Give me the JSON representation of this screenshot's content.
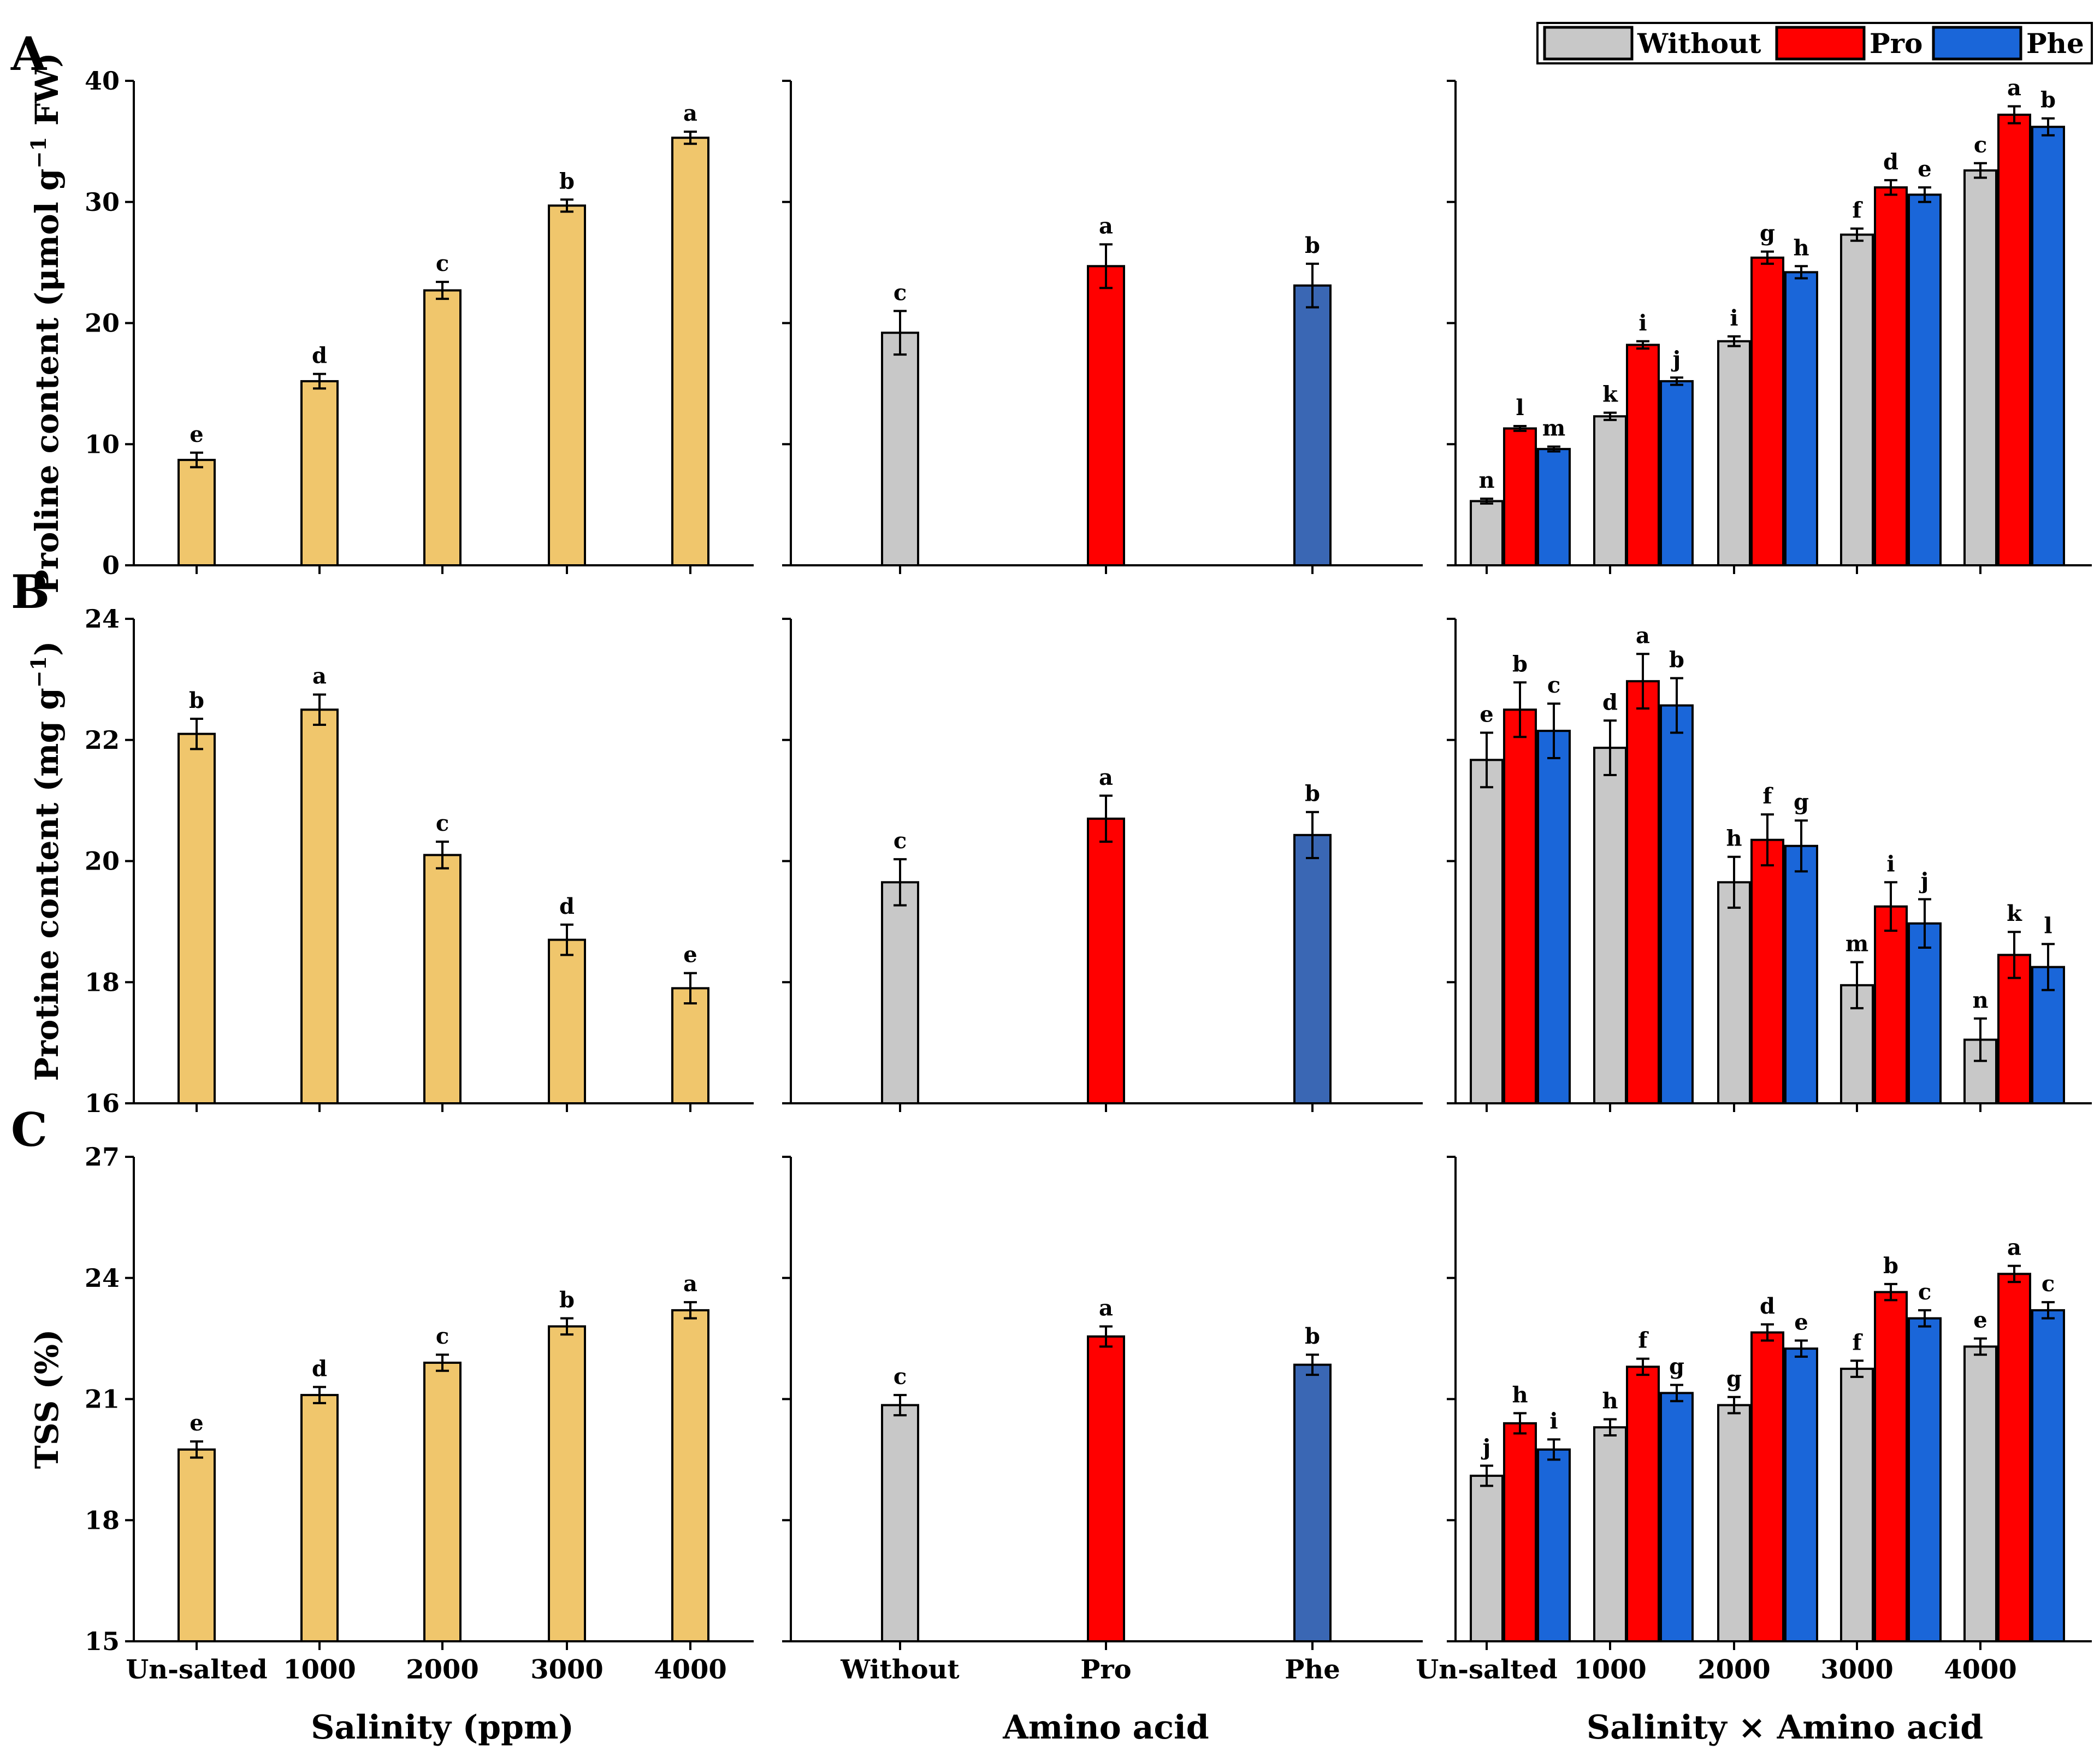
{
  "legend": {
    "items": [
      {
        "name": "Without",
        "color": "#c8c8c8"
      },
      {
        "name": "Pro",
        "color": "#ff0000"
      },
      {
        "name": "Phe",
        "color": "#1a66d9"
      }
    ]
  },
  "panel_letters": [
    "A",
    "B",
    "C"
  ],
  "col_titles": [
    "Salinity (ppm)",
    "Amino acid",
    "Salinity × Amino acid"
  ],
  "colors": {
    "salinity": "#f0c66c",
    "without": "#c8c8c8",
    "pro": "#ff0000",
    "phe_main": "#3a67b4",
    "phe_interaction": "#1a66d9"
  },
  "chart_data": [
    {
      "type": "bar",
      "panel": "A",
      "title": "",
      "ylabel_main": "Proline content (μmol g",
      "ylabel_sup": "−1",
      "ylabel_tail": " FW)",
      "ylim": [
        0,
        40
      ],
      "yticks": [
        0,
        10,
        20,
        30,
        40
      ],
      "salinity": {
        "categories": [
          "Un-salted",
          "1000",
          "2000",
          "3000",
          "4000"
        ],
        "values": [
          8.7,
          15.2,
          22.7,
          29.7,
          35.3
        ],
        "errors": [
          0.6,
          0.6,
          0.7,
          0.5,
          0.5
        ],
        "letters": [
          "e",
          "d",
          "c",
          "b",
          "a"
        ]
      },
      "amino": {
        "categories": [
          "Without",
          "Pro",
          "Phe"
        ],
        "values": [
          19.2,
          24.7,
          23.1
        ],
        "errors": [
          1.8,
          1.8,
          1.8
        ],
        "letters": [
          "c",
          "a",
          "b"
        ]
      },
      "interaction": {
        "categories": [
          "Un-salted",
          "1000",
          "2000",
          "3000",
          "4000"
        ],
        "series": [
          {
            "name": "Without",
            "values": [
              5.3,
              12.3,
              18.5,
              27.3,
              32.6
            ],
            "errors": [
              0.2,
              0.3,
              0.4,
              0.5,
              0.6
            ],
            "letters": [
              "n",
              "k",
              "i",
              "f",
              "c"
            ]
          },
          {
            "name": "Pro",
            "values": [
              11.3,
              18.2,
              25.4,
              31.2,
              37.2
            ],
            "errors": [
              0.2,
              0.3,
              0.5,
              0.6,
              0.7
            ],
            "letters": [
              "l",
              "i",
              "g",
              "d",
              "a"
            ]
          },
          {
            "name": "Phe",
            "values": [
              9.6,
              15.2,
              24.2,
              30.6,
              36.2
            ],
            "errors": [
              0.2,
              0.3,
              0.5,
              0.6,
              0.7
            ],
            "letters": [
              "m",
              "j",
              "h",
              "e",
              "b"
            ]
          }
        ]
      }
    },
    {
      "type": "bar",
      "panel": "B",
      "title": "",
      "ylabel_main": "Protine content (mg g",
      "ylabel_sup": "−1",
      "ylabel_tail": ")",
      "ylim": [
        16,
        24
      ],
      "yticks": [
        16,
        18,
        20,
        22,
        24
      ],
      "salinity": {
        "categories": [
          "Un-salted",
          "1000",
          "2000",
          "3000",
          "4000"
        ],
        "values": [
          22.1,
          22.5,
          20.1,
          18.7,
          17.9
        ],
        "errors": [
          0.25,
          0.25,
          0.22,
          0.25,
          0.25
        ],
        "letters": [
          "b",
          "a",
          "c",
          "d",
          "e"
        ]
      },
      "amino": {
        "categories": [
          "Without",
          "Pro",
          "Phe"
        ],
        "values": [
          19.65,
          20.7,
          20.43
        ],
        "errors": [
          0.38,
          0.38,
          0.38
        ],
        "letters": [
          "c",
          "a",
          "b"
        ]
      },
      "interaction": {
        "categories": [
          "Un-salted",
          "1000",
          "2000",
          "3000",
          "4000"
        ],
        "series": [
          {
            "name": "Without",
            "values": [
              21.67,
              21.87,
              19.65,
              17.95,
              17.05
            ],
            "errors": [
              0.45,
              0.45,
              0.42,
              0.38,
              0.35
            ],
            "letters": [
              "e",
              "d",
              "h",
              "m",
              "n"
            ]
          },
          {
            "name": "Pro",
            "values": [
              22.5,
              22.97,
              20.35,
              19.25,
              18.45
            ],
            "errors": [
              0.45,
              0.45,
              0.42,
              0.4,
              0.38
            ],
            "letters": [
              "b",
              "a",
              "f",
              "i",
              "k"
            ]
          },
          {
            "name": "Phe",
            "values": [
              22.15,
              22.57,
              20.25,
              18.97,
              18.25
            ],
            "errors": [
              0.45,
              0.45,
              0.42,
              0.4,
              0.38
            ],
            "letters": [
              "c",
              "b",
              "g",
              "j",
              "l"
            ]
          }
        ]
      }
    },
    {
      "type": "bar",
      "panel": "C",
      "title": "",
      "ylabel_main": "TSS (%)",
      "ylabel_sup": "",
      "ylabel_tail": "",
      "ylim": [
        15,
        27
      ],
      "yticks": [
        15,
        18,
        21,
        24,
        27
      ],
      "salinity": {
        "categories": [
          "Un-salted",
          "1000",
          "2000",
          "3000",
          "4000"
        ],
        "values": [
          19.75,
          21.1,
          21.9,
          22.8,
          23.2
        ],
        "errors": [
          0.2,
          0.2,
          0.2,
          0.2,
          0.2
        ],
        "letters": [
          "e",
          "d",
          "c",
          "b",
          "a"
        ]
      },
      "amino": {
        "categories": [
          "Without",
          "Pro",
          "Phe"
        ],
        "values": [
          20.85,
          22.55,
          21.85
        ],
        "errors": [
          0.25,
          0.25,
          0.25
        ],
        "letters": [
          "c",
          "a",
          "b"
        ]
      },
      "interaction": {
        "categories": [
          "Un-salted",
          "1000",
          "2000",
          "3000",
          "4000"
        ],
        "series": [
          {
            "name": "Without",
            "values": [
              19.1,
              20.3,
              20.85,
              21.75,
              22.3
            ],
            "errors": [
              0.25,
              0.2,
              0.2,
              0.2,
              0.2
            ],
            "letters": [
              "j",
              "h",
              "g",
              "f",
              "e"
            ]
          },
          {
            "name": "Pro",
            "values": [
              20.4,
              21.8,
              22.65,
              23.65,
              24.1
            ],
            "errors": [
              0.25,
              0.2,
              0.2,
              0.2,
              0.2
            ],
            "letters": [
              "h",
              "f",
              "d",
              "b",
              "a"
            ]
          },
          {
            "name": "Phe",
            "values": [
              19.75,
              21.15,
              22.25,
              23.0,
              23.2
            ],
            "errors": [
              0.25,
              0.2,
              0.2,
              0.2,
              0.2
            ],
            "letters": [
              "i",
              "g",
              "e",
              "c",
              "c"
            ]
          }
        ]
      }
    }
  ]
}
